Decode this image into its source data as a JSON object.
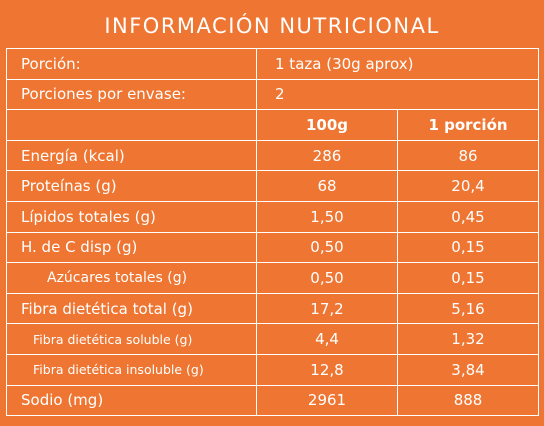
{
  "title": "INFORMACIÓN NUTRICIONAL",
  "serving": {
    "label": "Porción:",
    "value": "1 taza (30g aprox)"
  },
  "servings_per_container": {
    "label": "Porciones por envase:",
    "value": "2"
  },
  "columns": [
    "",
    "100g",
    "1 porción"
  ],
  "rows": [
    {
      "label": "Energía (kcal)",
      "per_100g": "286",
      "per_serving": "86",
      "level": 0
    },
    {
      "label": "Proteínas (g)",
      "per_100g": "68",
      "per_serving": "20,4",
      "level": 0
    },
    {
      "label": "Lípidos totales (g)",
      "per_100g": "1,50",
      "per_serving": "0,45",
      "level": 0
    },
    {
      "label": "H. de C disp (g)",
      "per_100g": "0,50",
      "per_serving": "0,15",
      "level": 0
    },
    {
      "label": "Azúcares totales (g)",
      "per_100g": "0,50",
      "per_serving": "0,15",
      "level": 1
    },
    {
      "label": "Fibra dietética total (g)",
      "per_100g": "17,2",
      "per_serving": "5,16",
      "level": 0
    },
    {
      "label": "Fibra dietética soluble (g)",
      "per_100g": "4,4",
      "per_serving": "1,32",
      "level": 2
    },
    {
      "label": "Fibra dietética insoluble (g)",
      "per_100g": "12,8",
      "per_serving": "3,84",
      "level": 2
    },
    {
      "label": "Sodio (mg)",
      "per_100g": "2961",
      "per_serving": "888",
      "level": 0
    }
  ],
  "colors": {
    "background": "#ee7632",
    "text": "#ffffff",
    "border": "#ffffff"
  }
}
